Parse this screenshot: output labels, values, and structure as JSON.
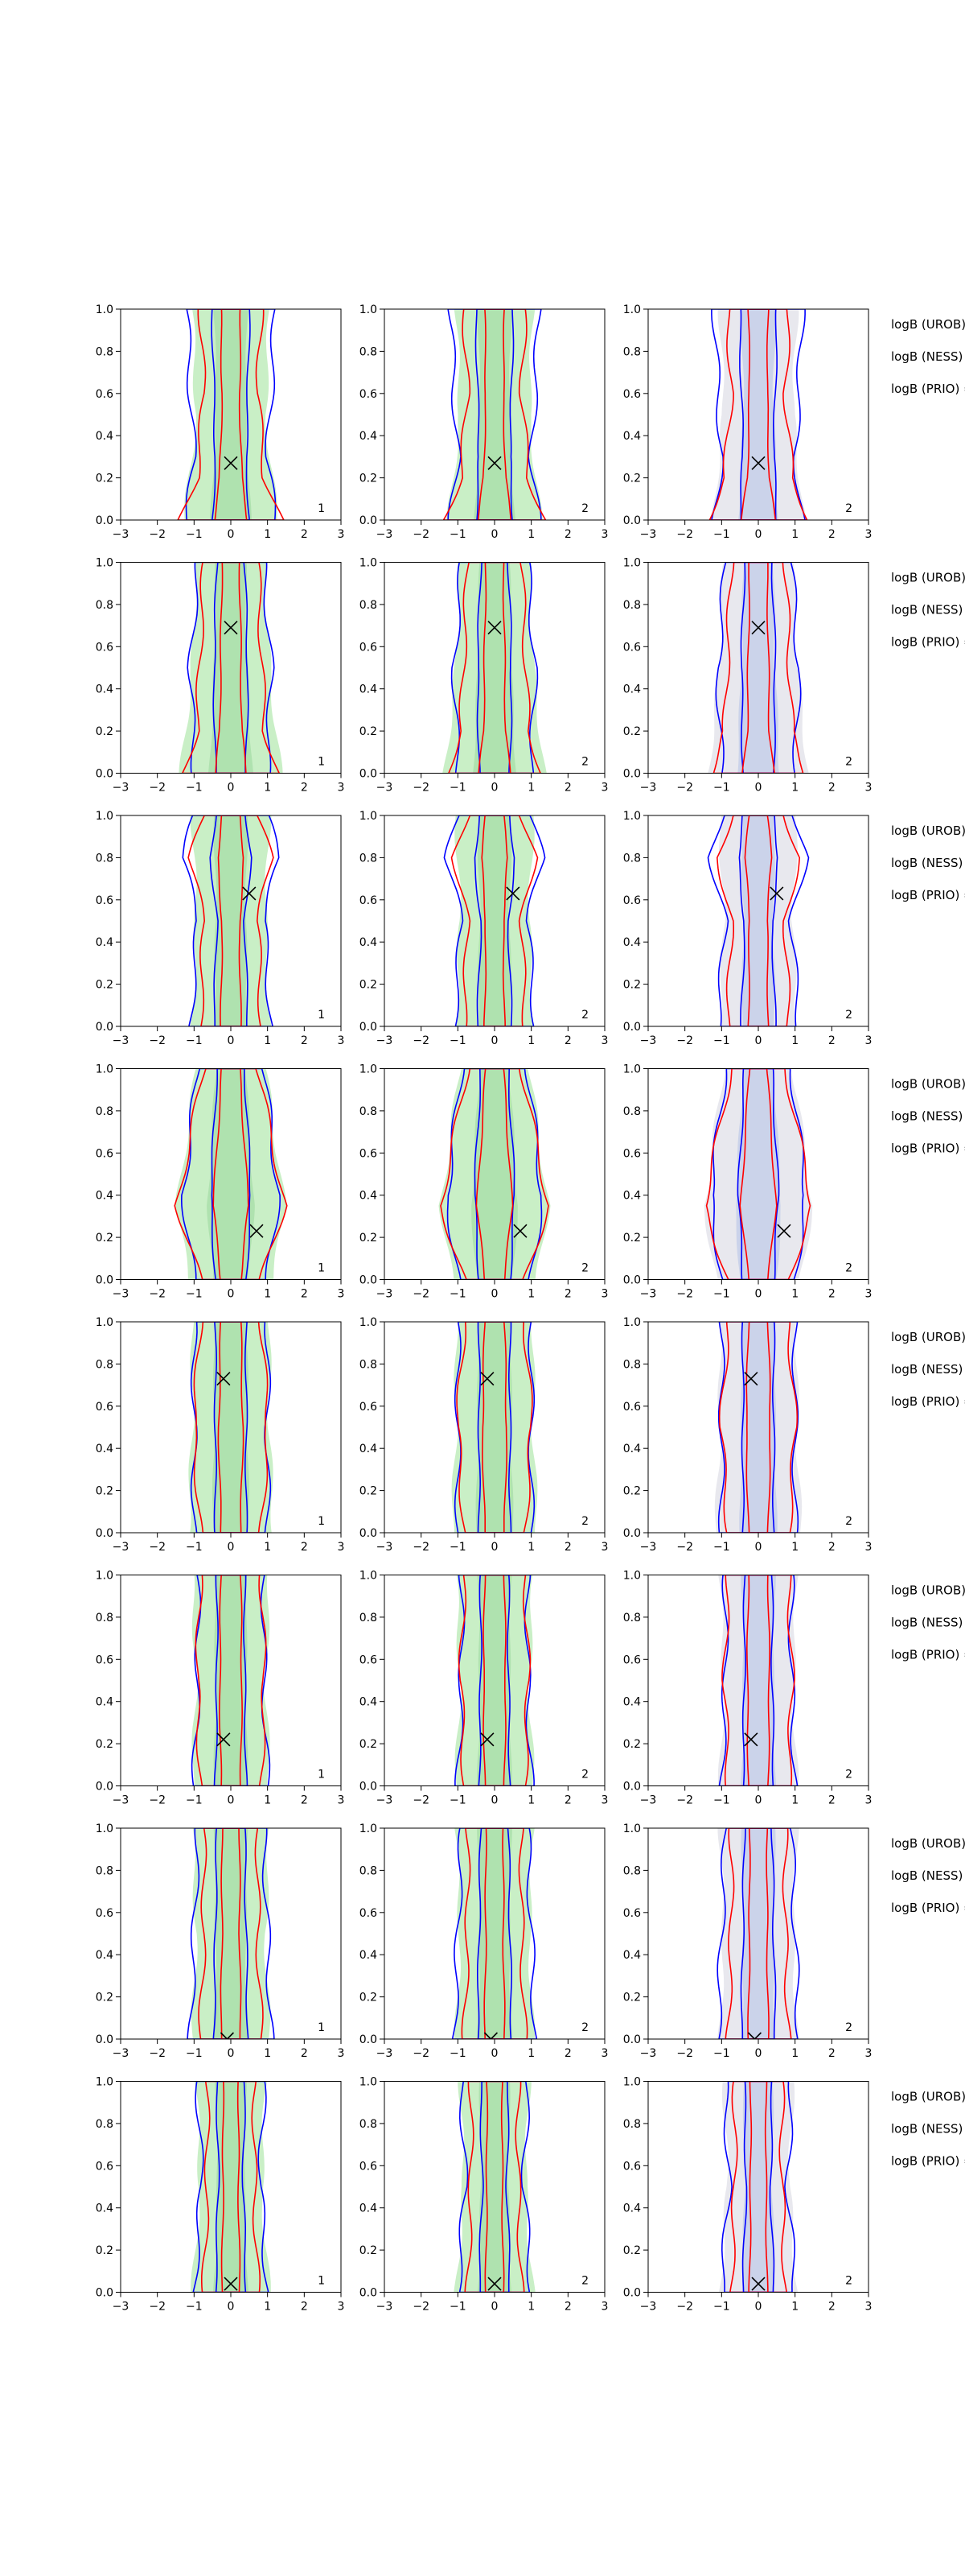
{
  "colors": {
    "outer_prior": "#0000ff",
    "outer_posterior": "#ff0000",
    "fill_green": "#b7eab3",
    "fill_grey": "#e0e0e8",
    "fill_blue": "#b8c4e8",
    "marker": "#000000"
  },
  "logb_labels": [
    "logB (UROB) =",
    "logB (NESS) =",
    "logB (PRIO) ="
  ],
  "chart_data": {
    "type": "contour-grid",
    "rows": 8,
    "cols": 3,
    "xlim": [
      -3,
      3
    ],
    "ylim": [
      0,
      1
    ],
    "x_ticks": [
      -3,
      -2,
      -1,
      0,
      1,
      2,
      3
    ],
    "y_ticks": [
      0.0,
      0.2,
      0.4,
      0.6,
      0.8,
      1.0
    ],
    "x_tick_labels": [
      "−3",
      "−2",
      "−1",
      "0",
      "1",
      "2",
      "3"
    ],
    "y_tick_labels": [
      "0.0",
      "0.2",
      "0.4",
      "0.6",
      "0.8",
      "1.0"
    ],
    "column_corner_labels": [
      "1",
      "2",
      "2"
    ],
    "markers": [
      {
        "x": 0.0,
        "y": 0.27
      },
      {
        "x": 0.0,
        "y": 0.69
      },
      {
        "x": 0.5,
        "y": 0.63
      },
      {
        "x": 0.7,
        "y": 0.23
      },
      {
        "x": -0.2,
        "y": 0.73
      },
      {
        "x": -0.2,
        "y": 0.22
      },
      {
        "x": -0.1,
        "y": 0.0
      },
      {
        "x": 0.0,
        "y": 0.04
      }
    ],
    "contour_half_widths": [
      {
        "blue": [
          [
            0.0,
            1.2
          ],
          [
            0.3,
            1.0
          ],
          [
            0.6,
            1.1
          ],
          [
            1.0,
            1.2
          ]
        ],
        "red": [
          [
            0.0,
            1.5
          ],
          [
            0.2,
            1.0
          ],
          [
            0.6,
            0.8
          ],
          [
            1.0,
            0.9
          ]
        ],
        "green": [
          [
            0.0,
            1.2
          ],
          [
            0.5,
            0.9
          ],
          [
            1.0,
            1.0
          ]
        ]
      },
      {
        "blue": [
          [
            0.0,
            1.0
          ],
          [
            0.5,
            1.1
          ],
          [
            1.0,
            0.9
          ]
        ],
        "red": [
          [
            0.0,
            1.4
          ],
          [
            0.2,
            1.0
          ],
          [
            0.6,
            0.9
          ],
          [
            1.0,
            0.8
          ]
        ],
        "green": [
          [
            0.0,
            1.3
          ],
          [
            0.5,
            1.0
          ],
          [
            1.0,
            0.9
          ]
        ]
      },
      {
        "blue": [
          [
            0.0,
            1.1
          ],
          [
            0.5,
            0.9
          ],
          [
            0.8,
            1.3
          ],
          [
            1.0,
            1.0
          ]
        ],
        "red": [
          [
            0.0,
            0.9
          ],
          [
            0.5,
            0.8
          ],
          [
            0.8,
            1.2
          ],
          [
            1.0,
            0.8
          ]
        ],
        "green": [
          [
            0.0,
            1.0
          ],
          [
            0.5,
            0.9
          ],
          [
            1.0,
            1.0
          ]
        ]
      },
      {
        "blue": [
          [
            0.0,
            1.0
          ],
          [
            0.4,
            1.3
          ],
          [
            1.0,
            0.9
          ]
        ],
        "red": [
          [
            0.0,
            0.9
          ],
          [
            0.35,
            1.6
          ],
          [
            1.0,
            0.8
          ]
        ],
        "green": [
          [
            0.0,
            1.1
          ],
          [
            0.35,
            1.4
          ],
          [
            1.0,
            0.9
          ]
        ]
      },
      {
        "blue": [
          [
            0.0,
            1.0
          ],
          [
            0.5,
            1.0
          ],
          [
            1.0,
            1.0
          ]
        ],
        "red": [
          [
            0.0,
            0.9
          ],
          [
            0.5,
            1.1
          ],
          [
            1.0,
            0.9
          ]
        ],
        "green": [
          [
            0.0,
            1.1
          ],
          [
            0.5,
            1.0
          ],
          [
            1.0,
            1.0
          ]
        ]
      },
      {
        "blue": [
          [
            0.0,
            1.0
          ],
          [
            0.5,
            0.9
          ],
          [
            1.0,
            0.9
          ]
        ],
        "red": [
          [
            0.0,
            0.9
          ],
          [
            0.5,
            1.0
          ],
          [
            1.0,
            0.9
          ]
        ],
        "green": [
          [
            0.0,
            1.0
          ],
          [
            0.5,
            0.9
          ],
          [
            1.0,
            1.0
          ]
        ]
      },
      {
        "blue": [
          [
            0.0,
            1.1
          ],
          [
            0.5,
            1.0
          ],
          [
            1.0,
            0.9
          ]
        ],
        "red": [
          [
            0.0,
            0.9
          ],
          [
            0.5,
            0.8
          ],
          [
            1.0,
            0.8
          ]
        ],
        "green": [
          [
            0.0,
            1.0
          ],
          [
            0.5,
            0.9
          ],
          [
            1.0,
            1.0
          ]
        ]
      },
      {
        "blue": [
          [
            0.0,
            1.0
          ],
          [
            0.5,
            0.8
          ],
          [
            1.0,
            0.9
          ]
        ],
        "red": [
          [
            0.0,
            0.8
          ],
          [
            0.5,
            0.7
          ],
          [
            1.0,
            0.7
          ]
        ],
        "green": [
          [
            0.0,
            1.0
          ],
          [
            0.5,
            0.8
          ],
          [
            1.0,
            0.9
          ]
        ]
      }
    ]
  }
}
